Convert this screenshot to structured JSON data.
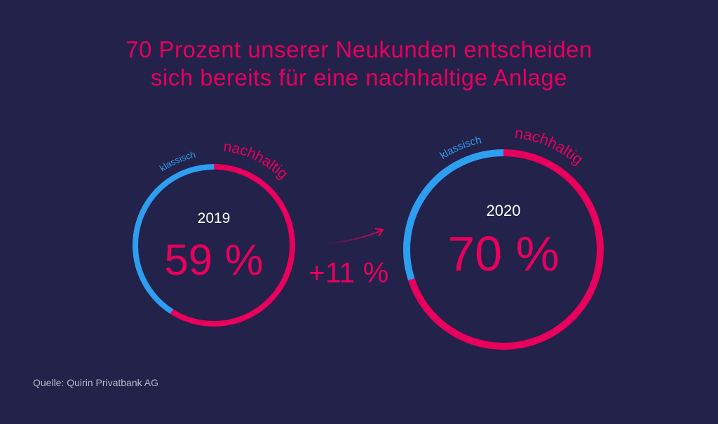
{
  "title_lines": [
    "70 Prozent unserer Neukunden entscheiden",
    "sich bereits für eine nachhaltige Anlage"
  ],
  "source": "Quelle: Quirin Privatbank AG",
  "change_label": "+11 %",
  "colors": {
    "background": "#22224a",
    "nachhaltig": "#e8005d",
    "klassisch": "#2e9ef0",
    "text": "#ffffff"
  },
  "chart_data": [
    {
      "type": "pie",
      "year": "2019",
      "center_label": "59 %",
      "slices": [
        {
          "name": "nachhaltig",
          "value": 59
        },
        {
          "name": "klassisch",
          "value": 41
        }
      ]
    },
    {
      "type": "pie",
      "year": "2020",
      "center_label": "70 %",
      "slices": [
        {
          "name": "nachhaltig",
          "value": 70
        },
        {
          "name": "klassisch",
          "value": 30
        }
      ]
    }
  ]
}
